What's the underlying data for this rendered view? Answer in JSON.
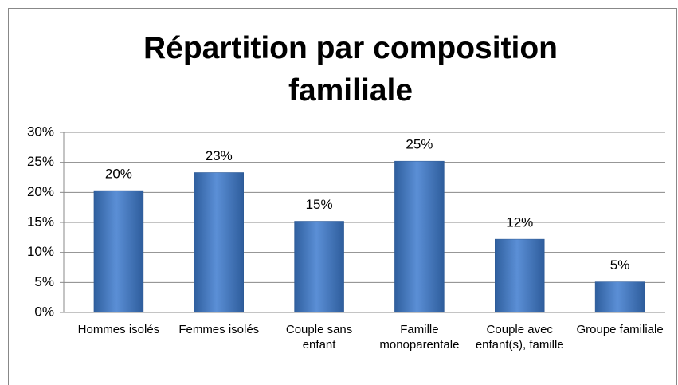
{
  "chart_data": {
    "type": "bar",
    "title": "Répartition par composition familiale",
    "categories": [
      "Hommes isolés",
      "Femmes isolés",
      "Couple sans enfant",
      "Famille monoparentale",
      "Couple avec enfant(s), famille",
      "Groupe familiale"
    ],
    "values": [
      20.3,
      23.3,
      15.2,
      25.2,
      12.2,
      5.1
    ],
    "value_labels": [
      "20%",
      "23%",
      "15%",
      "25%",
      "12%",
      "5%"
    ],
    "color": "#4f81bd",
    "ylim": [
      0,
      30
    ],
    "yticks": [
      {
        "value": 0,
        "label": "0%"
      },
      {
        "value": 5,
        "label": "5%"
      },
      {
        "value": 10,
        "label": "10%"
      },
      {
        "value": 15,
        "label": "15%"
      },
      {
        "value": 20,
        "label": "20%"
      },
      {
        "value": 25,
        "label": "25%"
      },
      {
        "value": 30,
        "label": "30%"
      }
    ],
    "grid": true
  }
}
